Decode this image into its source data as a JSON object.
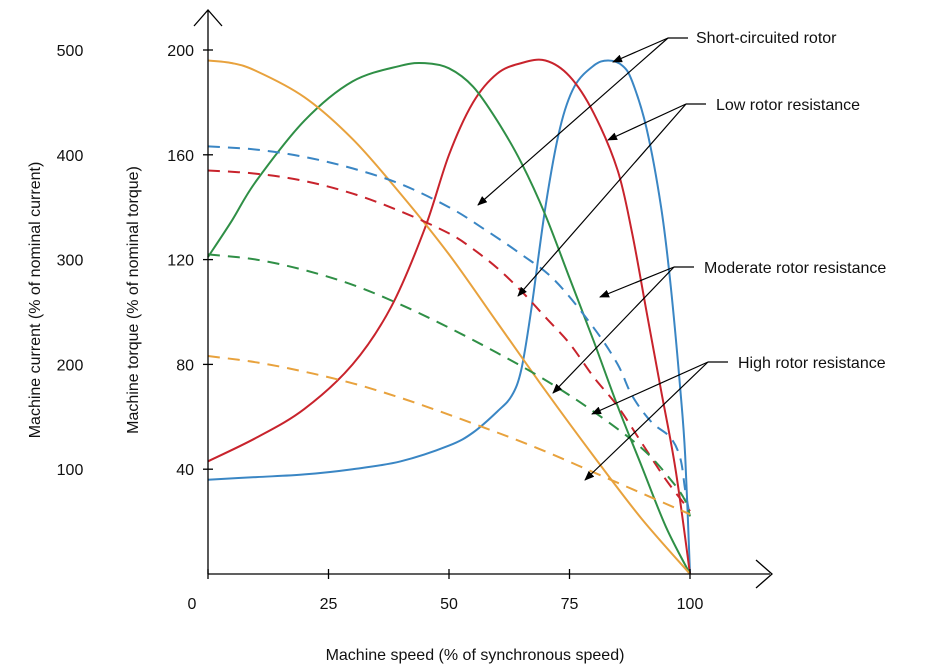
{
  "chart_data": {
    "type": "line",
    "title": "",
    "xlabel": "Machine speed (% of synchronous speed)",
    "ylabel_torque": "Machine torque (% of nominal torque)",
    "ylabel_current": "Machine current (% of nominal current)",
    "xlim": [
      0,
      100
    ],
    "ylim_torque": [
      0,
      200
    ],
    "ylim_current": [
      0,
      500
    ],
    "x_ticks": [
      0,
      25,
      50,
      75,
      100
    ],
    "torque_ticks": [
      40,
      80,
      120,
      160,
      200
    ],
    "current_ticks": [
      100,
      200,
      300,
      400,
      500
    ],
    "grid": false,
    "legend": "annotations with arrows, right side",
    "series": [
      {
        "name": "Short-circuited rotor",
        "quantity": "torque",
        "color": "#3a86c4",
        "dash": false,
        "points": [
          [
            0,
            36
          ],
          [
            10,
            37
          ],
          [
            20,
            38
          ],
          [
            30,
            40
          ],
          [
            40,
            43
          ],
          [
            50,
            49
          ],
          [
            55,
            54
          ],
          [
            60,
            62
          ],
          [
            63,
            68
          ],
          [
            65,
            78
          ],
          [
            67,
            100
          ],
          [
            70,
            140
          ],
          [
            73,
            170
          ],
          [
            76,
            186
          ],
          [
            80,
            194
          ],
          [
            83,
            196
          ],
          [
            86,
            194
          ],
          [
            88,
            188
          ],
          [
            91,
            170
          ],
          [
            94,
            140
          ],
          [
            96,
            110
          ],
          [
            98,
            70
          ],
          [
            99,
            45
          ],
          [
            100,
            0
          ]
        ]
      },
      {
        "name": "Low rotor resistance",
        "quantity": "torque",
        "color": "#c8232c",
        "dash": false,
        "points": [
          [
            0,
            43
          ],
          [
            10,
            52
          ],
          [
            20,
            63
          ],
          [
            30,
            80
          ],
          [
            38,
            102
          ],
          [
            45,
            132
          ],
          [
            50,
            160
          ],
          [
            55,
            180
          ],
          [
            60,
            191
          ],
          [
            65,
            195
          ],
          [
            70,
            196
          ],
          [
            75,
            190
          ],
          [
            80,
            176
          ],
          [
            85,
            154
          ],
          [
            88,
            130
          ],
          [
            91,
            100
          ],
          [
            94,
            70
          ],
          [
            97,
            40
          ],
          [
            100,
            0
          ]
        ]
      },
      {
        "name": "Moderate rotor resistance",
        "quantity": "torque",
        "color": "#2f8f46",
        "dash": false,
        "points": [
          [
            0,
            121
          ],
          [
            5,
            135
          ],
          [
            10,
            150
          ],
          [
            20,
            173
          ],
          [
            30,
            188
          ],
          [
            40,
            194
          ],
          [
            45,
            195
          ],
          [
            50,
            193
          ],
          [
            55,
            186
          ],
          [
            60,
            173
          ],
          [
            65,
            157
          ],
          [
            70,
            137
          ],
          [
            75,
            113
          ],
          [
            80,
            89
          ],
          [
            85,
            64
          ],
          [
            90,
            41
          ],
          [
            95,
            18
          ],
          [
            100,
            0
          ]
        ]
      },
      {
        "name": "High rotor resistance",
        "quantity": "torque",
        "color": "#e8a23d",
        "dash": false,
        "points": [
          [
            0,
            196
          ],
          [
            5,
            195
          ],
          [
            10,
            192
          ],
          [
            20,
            182
          ],
          [
            30,
            166
          ],
          [
            40,
            145
          ],
          [
            50,
            122
          ],
          [
            60,
            96
          ],
          [
            70,
            70
          ],
          [
            80,
            45
          ],
          [
            90,
            21
          ],
          [
            100,
            0
          ]
        ]
      },
      {
        "name": "Short-circuited rotor",
        "quantity": "current",
        "color": "#3a86c4",
        "dash": true,
        "points": [
          [
            0,
            408
          ],
          [
            10,
            405
          ],
          [
            20,
            398
          ],
          [
            30,
            387
          ],
          [
            40,
            372
          ],
          [
            50,
            350
          ],
          [
            57,
            330
          ],
          [
            65,
            305
          ],
          [
            72,
            280
          ],
          [
            80,
            235
          ],
          [
            85,
            200
          ],
          [
            88,
            170
          ],
          [
            92,
            145
          ],
          [
            96,
            130
          ],
          [
            98,
            110
          ],
          [
            99,
            80
          ],
          [
            100,
            55
          ]
        ]
      },
      {
        "name": "Low rotor resistance",
        "quantity": "current",
        "color": "#c8232c",
        "dash": true,
        "points": [
          [
            0,
            385
          ],
          [
            10,
            382
          ],
          [
            20,
            375
          ],
          [
            30,
            363
          ],
          [
            40,
            346
          ],
          [
            50,
            325
          ],
          [
            55,
            310
          ],
          [
            60,
            292
          ],
          [
            65,
            270
          ],
          [
            70,
            245
          ],
          [
            75,
            220
          ],
          [
            80,
            188
          ],
          [
            85,
            160
          ],
          [
            90,
            125
          ],
          [
            95,
            90
          ],
          [
            100,
            60
          ]
        ]
      },
      {
        "name": "Moderate rotor resistance",
        "quantity": "current",
        "color": "#2f8f46",
        "dash": true,
        "points": [
          [
            0,
            305
          ],
          [
            10,
            300
          ],
          [
            20,
            290
          ],
          [
            30,
            276
          ],
          [
            40,
            257
          ],
          [
            50,
            235
          ],
          [
            60,
            211
          ],
          [
            70,
            185
          ],
          [
            80,
            155
          ],
          [
            90,
            120
          ],
          [
            96,
            90
          ],
          [
            99,
            70
          ],
          [
            100,
            55
          ]
        ]
      },
      {
        "name": "High rotor resistance",
        "quantity": "current",
        "color": "#e8a23d",
        "dash": true,
        "points": [
          [
            0,
            208
          ],
          [
            10,
            202
          ],
          [
            20,
            193
          ],
          [
            30,
            182
          ],
          [
            40,
            168
          ],
          [
            50,
            152
          ],
          [
            60,
            135
          ],
          [
            70,
            117
          ],
          [
            80,
            97
          ],
          [
            90,
            77
          ],
          [
            100,
            57
          ]
        ]
      }
    ],
    "annotations": [
      {
        "label": "Short-circuited rotor",
        "color": "#3a86c4"
      },
      {
        "label": "Low rotor resistance",
        "color": "#c8232c"
      },
      {
        "label": "Moderate rotor resistance",
        "color": "#2f8f46"
      },
      {
        "label": "High rotor resistance",
        "color": "#e8a23d"
      }
    ]
  }
}
